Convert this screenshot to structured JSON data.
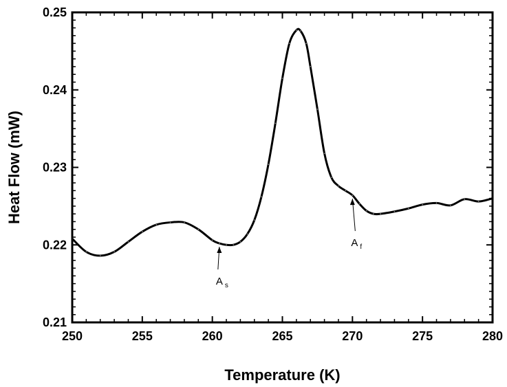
{
  "chart_data": {
    "type": "line",
    "title": "",
    "xlabel": "Temperature (K)",
    "ylabel": "Heat Flow (mW)",
    "xlim": [
      250,
      280
    ],
    "ylim": [
      0.21,
      0.25
    ],
    "xticks": [
      250,
      255,
      260,
      265,
      270,
      275,
      280
    ],
    "xtick_labels": [
      "250",
      "255",
      "260",
      "265",
      "270",
      "275",
      "280"
    ],
    "yticks": [
      0.21,
      0.22,
      0.23,
      0.24,
      0.25
    ],
    "ytick_labels": [
      "0.21",
      "0.22",
      "0.23",
      "0.24",
      "0.25"
    ],
    "grid": false,
    "legend": "none",
    "series": [
      {
        "color": "#000000",
        "x": [
          250,
          251,
          252,
          253,
          254,
          255,
          256,
          257,
          258,
          259,
          260,
          260.5,
          261,
          261.5,
          262,
          262.5,
          263,
          263.5,
          264,
          264.5,
          265,
          265.5,
          266,
          266.3,
          266.7,
          267,
          267.5,
          268,
          268.5,
          269,
          269.5,
          270,
          270.5,
          271,
          271.5,
          272,
          273,
          274,
          275,
          276,
          277,
          278,
          279,
          280
        ],
        "y": [
          0.2208,
          0.2191,
          0.2186,
          0.2191,
          0.2204,
          0.2217,
          0.2226,
          0.2229,
          0.2229,
          0.222,
          0.2206,
          0.2202,
          0.22,
          0.22,
          0.2204,
          0.2214,
          0.2232,
          0.2262,
          0.2304,
          0.2357,
          0.2415,
          0.246,
          0.2477,
          0.2476,
          0.246,
          0.243,
          0.2375,
          0.2318,
          0.2287,
          0.2276,
          0.227,
          0.2264,
          0.2253,
          0.2244,
          0.224,
          0.224,
          0.2243,
          0.2247,
          0.2252,
          0.2254,
          0.2251,
          0.2259,
          0.2256,
          0.226
        ]
      }
    ],
    "annotations": [
      {
        "label": "A",
        "subscript": "s",
        "x": 260.5,
        "y": 0.2202
      },
      {
        "label": "A",
        "subscript": "f",
        "x": 270,
        "y": 0.2264
      }
    ]
  }
}
